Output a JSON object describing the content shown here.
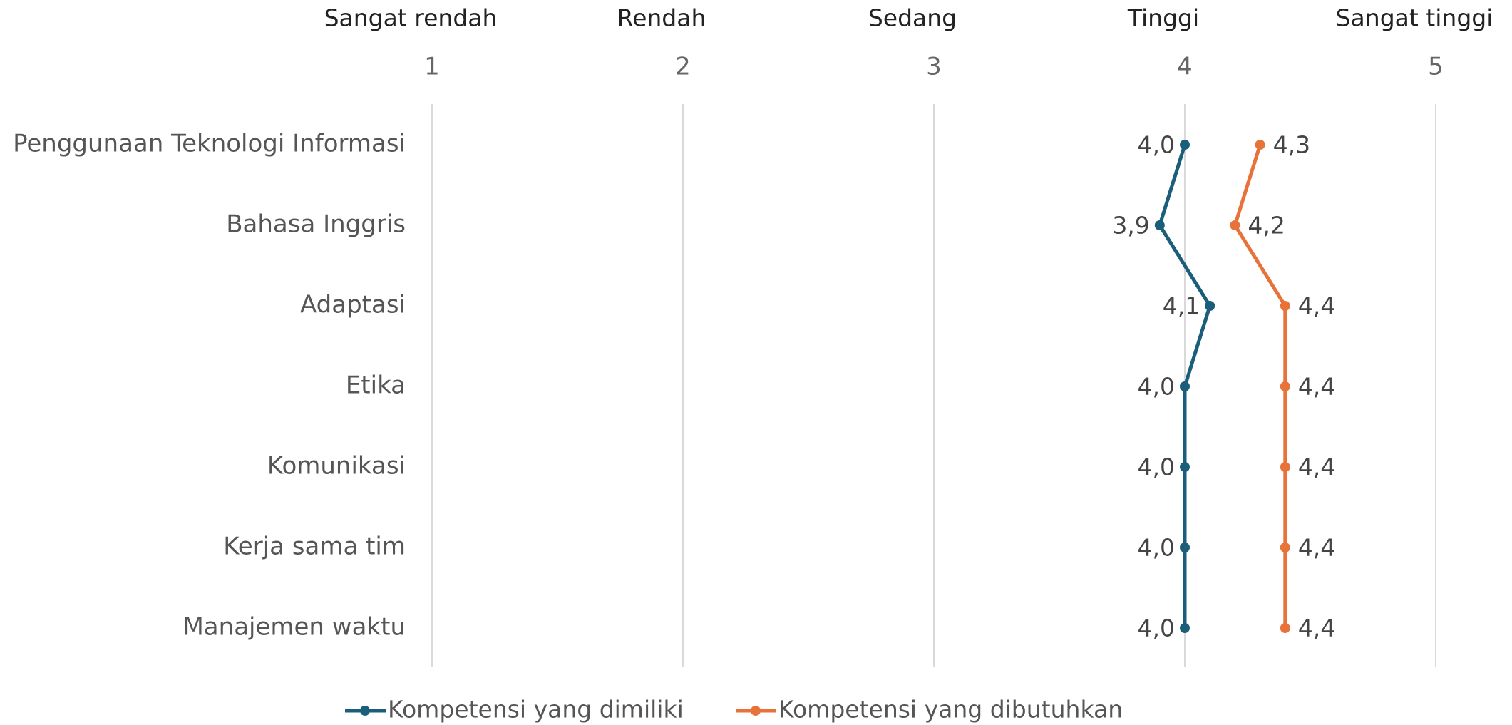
{
  "chart_data": {
    "type": "line",
    "orientation": "horizontal",
    "categories": [
      "Penggunaan Teknologi Informasi",
      "Bahasa Inggris",
      "Adaptasi",
      "Etika",
      "Komunikasi",
      "Kerja sama tim",
      "Manajemen waktu"
    ],
    "series": [
      {
        "name": "Kompetensi yang dimiliki",
        "color": "#1b5e7b",
        "values": [
          4.0,
          3.9,
          4.1,
          4.0,
          4.0,
          4.0,
          4.0
        ],
        "value_labels": [
          "4,0",
          "3,9",
          "4,1",
          "4,0",
          "4,0",
          "4,0",
          "4,0"
        ]
      },
      {
        "name": "Kompetensi yang dibutuhkan",
        "color": "#e8733a",
        "values": [
          4.3,
          4.2,
          4.4,
          4.4,
          4.4,
          4.4,
          4.4
        ],
        "value_labels": [
          "4,3",
          "4,2",
          "4,4",
          "4,4",
          "4,4",
          "4,4",
          "4,4"
        ]
      }
    ],
    "xlim": [
      1,
      5
    ],
    "xticks": [
      1,
      2,
      3,
      4,
      5
    ],
    "scale_labels": [
      "Sangat rendah",
      "Rendah",
      "Sedang",
      "Tinggi",
      "Sangat tinggi"
    ],
    "grid": true,
    "legend": "bottom"
  }
}
